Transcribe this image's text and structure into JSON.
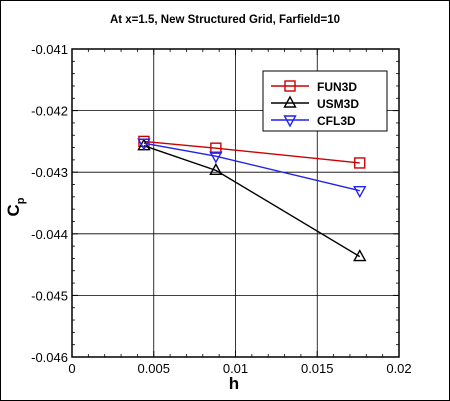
{
  "chart_data": {
    "type": "line",
    "title": "At x=1.5, New Structured Grid, Farfield=10",
    "xlabel": "h",
    "ylabel_main": "C",
    "ylabel_sub": "p",
    "xlim": [
      0,
      0.02
    ],
    "ylim": [
      -0.046,
      -0.041
    ],
    "x_ticks": [
      0,
      0.005,
      0.01,
      0.015,
      0.02
    ],
    "x_tick_labels": [
      "0",
      "0.005",
      "0.01",
      "0.015",
      "0.02"
    ],
    "y_ticks": [
      -0.046,
      -0.045,
      -0.044,
      -0.043,
      -0.042,
      -0.041
    ],
    "y_tick_labels": [
      "-0.046",
      "-0.045",
      "-0.044",
      "-0.043",
      "-0.042",
      "-0.041"
    ],
    "grid": true,
    "legend_position": "top-right",
    "series": [
      {
        "name": "FUN3D",
        "color": "#cc0000",
        "marker": "square",
        "x": [
          0.0044,
          0.0088,
          0.0176
        ],
        "y": [
          -0.0425,
          -0.04261,
          -0.04285
        ]
      },
      {
        "name": "USM3D",
        "color": "#000000",
        "marker": "triangle-up",
        "x": [
          0.0044,
          0.0088,
          0.0176
        ],
        "y": [
          -0.04257,
          -0.04297,
          -0.04437
        ]
      },
      {
        "name": "CFL3D",
        "color": "#2222ee",
        "marker": "triangle-down",
        "x": [
          0.0044,
          0.0088,
          0.0176
        ],
        "y": [
          -0.04253,
          -0.04274,
          -0.0433
        ]
      }
    ]
  }
}
